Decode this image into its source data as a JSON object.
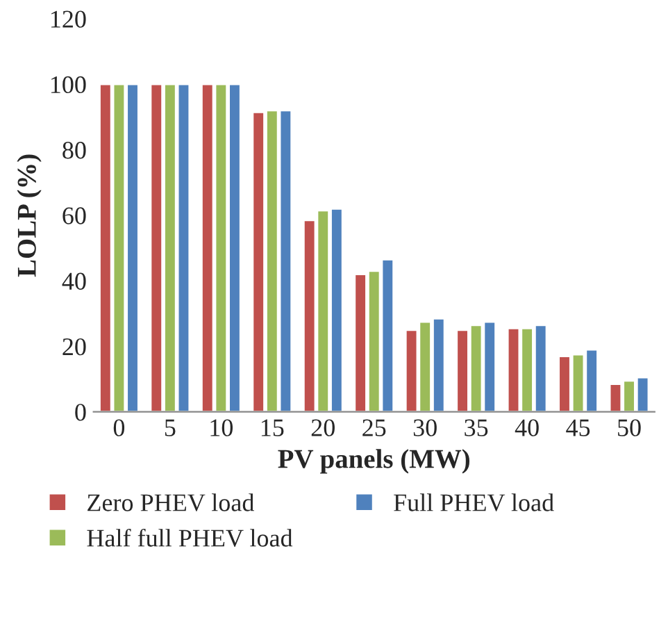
{
  "chart_data": {
    "type": "bar",
    "xlabel": "PV panels (MW)",
    "ylabel": "LOLP (%)",
    "categories": [
      "0",
      "5",
      "10",
      "15",
      "20",
      "25",
      "30",
      "35",
      "40",
      "45",
      "50"
    ],
    "series": [
      {
        "name": "Zero PHEV load",
        "color": "#c0504d",
        "values": [
          100,
          100,
          100,
          91.5,
          58.5,
          42,
          25,
          25,
          25.5,
          17,
          8.5
        ]
      },
      {
        "name": "Half full PHEV load",
        "color": "#9bbb59",
        "values": [
          100,
          100,
          100,
          92,
          61.5,
          43,
          27.5,
          26.5,
          25.5,
          17.5,
          9.5
        ]
      },
      {
        "name": "Full PHEV load",
        "color": "#4f81bd",
        "values": [
          100,
          100,
          100,
          92,
          62,
          46.5,
          28.5,
          27.5,
          26.5,
          19,
          10.5
        ]
      }
    ],
    "ylim": [
      0,
      120
    ],
    "yticks": [
      0,
      20,
      40,
      60,
      80,
      100,
      120
    ],
    "grid": false,
    "legend": "bottom"
  }
}
